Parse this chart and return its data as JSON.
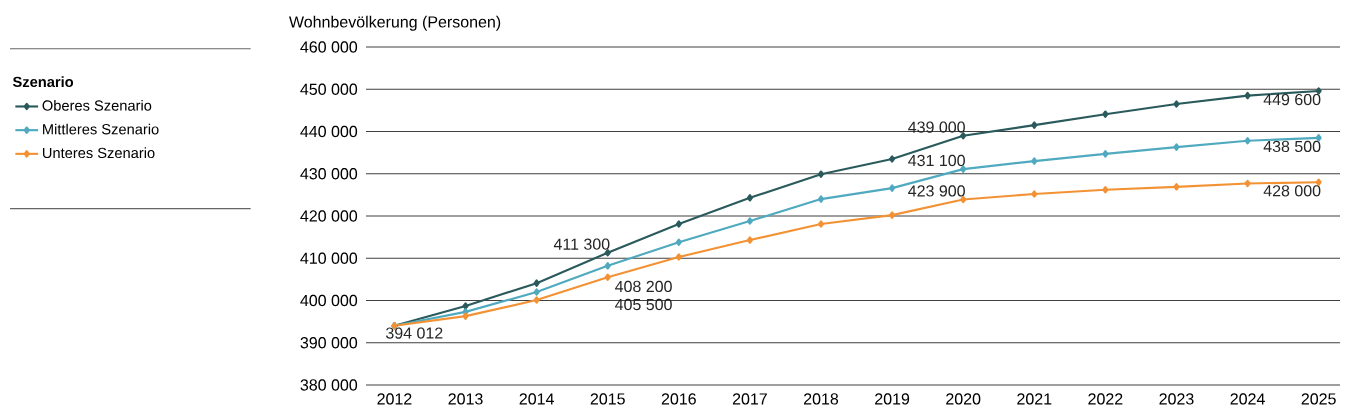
{
  "chart_data": {
    "type": "line",
    "ylabel": "Wohnbevölkerung (Personen)",
    "legend_title": "Szenario",
    "legend": "left",
    "grid": "y",
    "marker": "diamond",
    "line_style": "solid",
    "x": [
      2012,
      2013,
      2014,
      2015,
      2016,
      2017,
      2018,
      2019,
      2020,
      2021,
      2022,
      2023,
      2024,
      2025
    ],
    "xlim": [
      2011.6,
      2025.3
    ],
    "xticks": [
      2012,
      2013,
      2014,
      2015,
      2016,
      2017,
      2018,
      2019,
      2020,
      2021,
      2022,
      2023,
      2024,
      2025
    ],
    "ylim": [
      380000,
      460000
    ],
    "yticks": [
      {
        "value": 380000,
        "label": "380 000"
      },
      {
        "value": 390000,
        "label": "390 000"
      },
      {
        "value": 400000,
        "label": "400 000"
      },
      {
        "value": 410000,
        "label": "410 000"
      },
      {
        "value": 420000,
        "label": "420 000"
      },
      {
        "value": 430000,
        "label": "430 000"
      },
      {
        "value": 440000,
        "label": "440 000"
      },
      {
        "value": 450000,
        "label": "450 000"
      },
      {
        "value": 460000,
        "label": "460 000"
      }
    ],
    "series": [
      {
        "name": "Oberes Szenario",
        "color": "#2a5a5c",
        "values": [
          394012,
          398700,
          404100,
          411300,
          418100,
          424300,
          429900,
          433500,
          439000,
          441500,
          444100,
          446500,
          448500,
          449600
        ],
        "value_labels": [
          "394 012",
          null,
          null,
          "411 300",
          null,
          null,
          null,
          null,
          "439 000",
          null,
          null,
          null,
          null,
          "449 600"
        ]
      },
      {
        "name": "Mittleres Szenario",
        "color": "#4fa9bf",
        "values": [
          394012,
          397300,
          402000,
          408200,
          413800,
          418800,
          424000,
          426600,
          431100,
          433000,
          434700,
          436300,
          437800,
          438500
        ],
        "value_labels": [
          null,
          null,
          null,
          "408 200",
          null,
          null,
          null,
          null,
          "431 100",
          null,
          null,
          null,
          null,
          "438 500"
        ]
      },
      {
        "name": "Unteres Szenario",
        "color": "#f39234",
        "values": [
          394012,
          396300,
          400100,
          405500,
          410300,
          414300,
          418100,
          420200,
          423900,
          425200,
          426200,
          426900,
          427700,
          428000
        ],
        "value_labels": [
          null,
          null,
          null,
          "405 500",
          null,
          null,
          null,
          null,
          "423 900",
          null,
          null,
          null,
          null,
          "428 000"
        ]
      }
    ]
  }
}
